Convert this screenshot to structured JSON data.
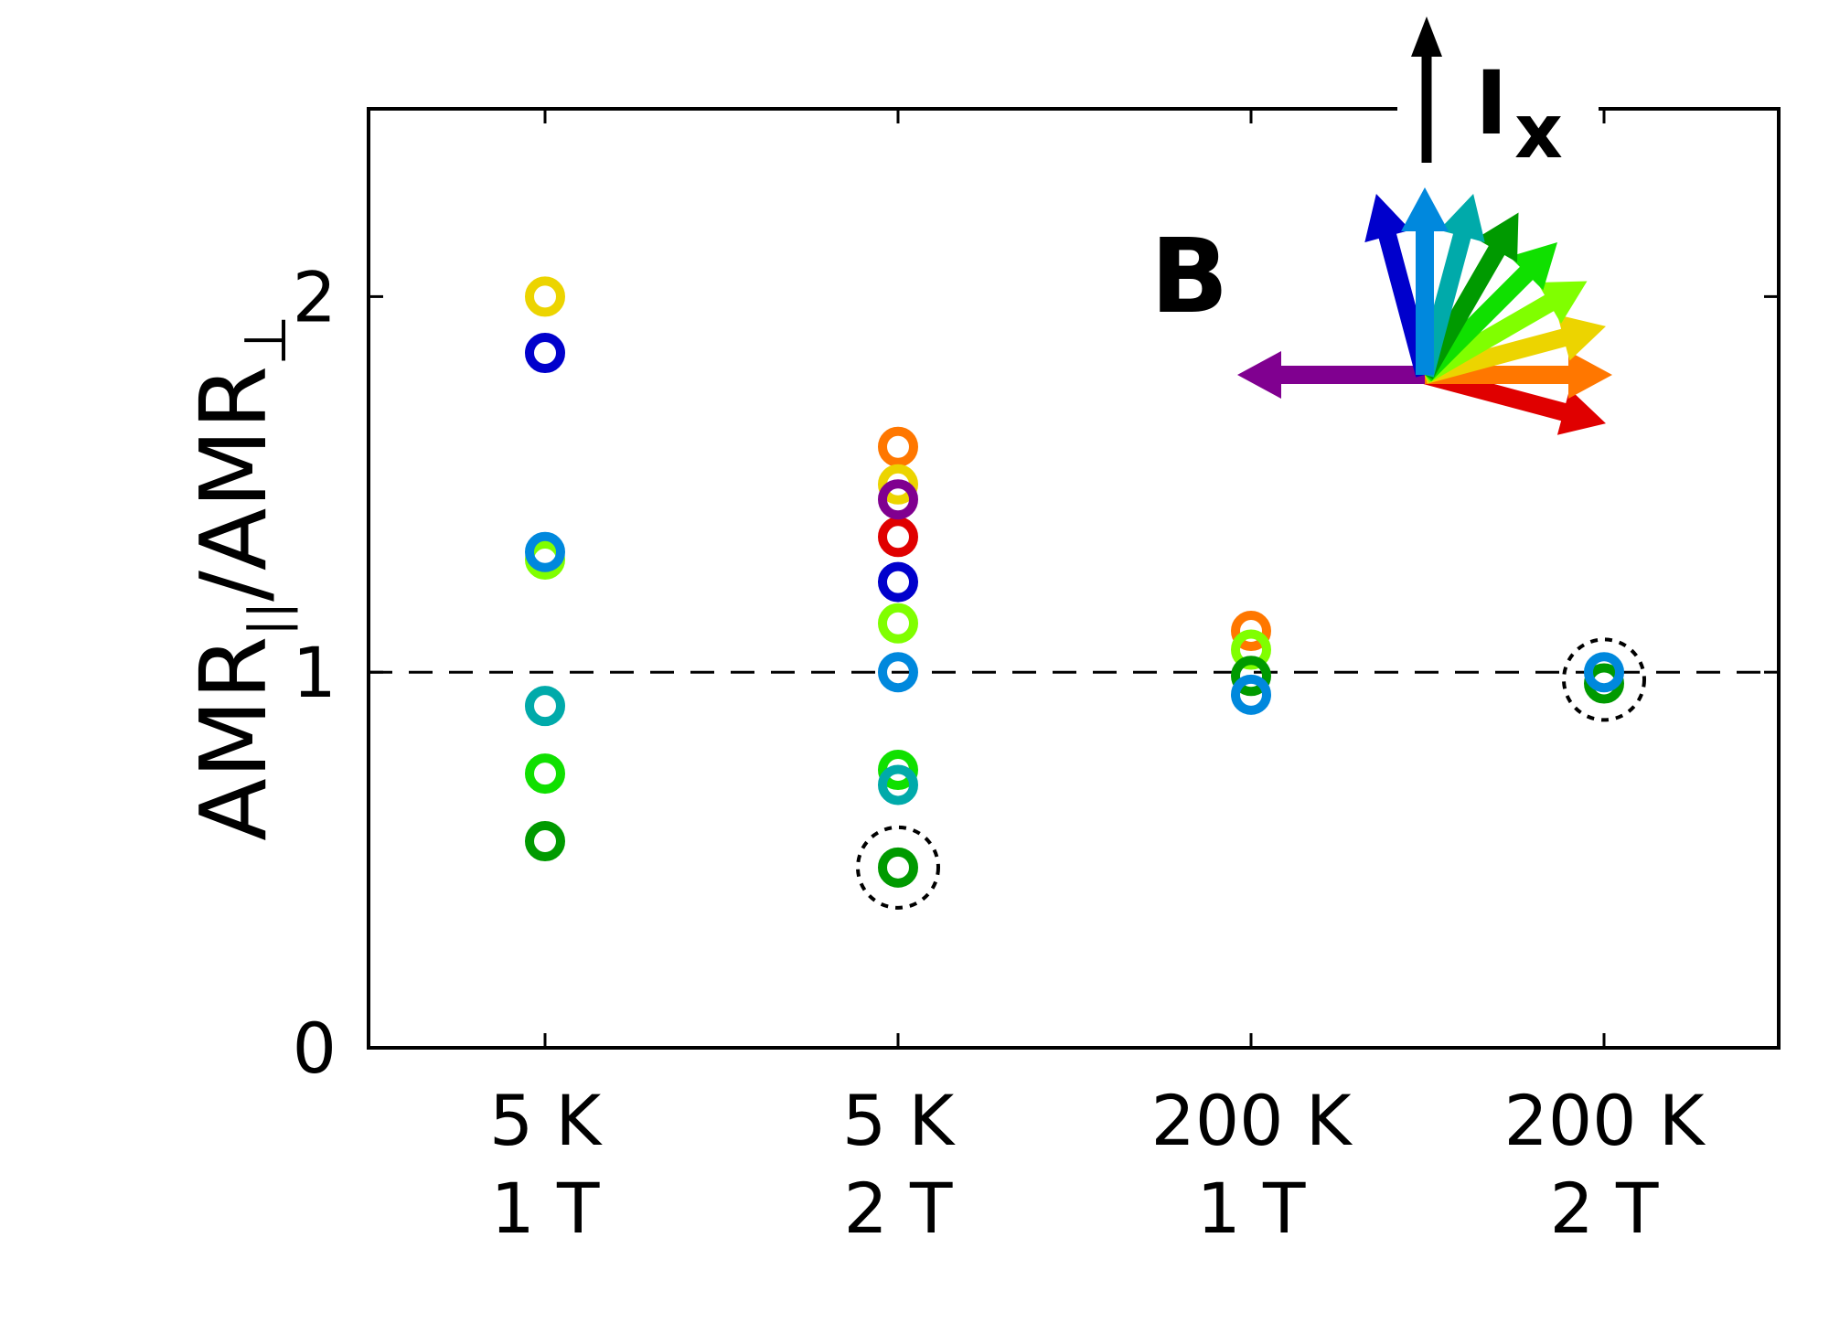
{
  "chart_data": {
    "type": "scatter",
    "title": "",
    "xlabel": "",
    "ylabel": {
      "base": "AMR",
      "sub_parallel": "||",
      "sep": "/",
      "sub_perp": "⊥"
    },
    "ylim": [
      0,
      2.5
    ],
    "yticks": [
      0,
      1,
      2
    ],
    "categories": [
      {
        "line1": "5 K",
        "line2": "1 T"
      },
      {
        "line1": "5 K",
        "line2": "2 T"
      },
      {
        "line1": "200 K",
        "line2": "1 T"
      },
      {
        "line1": "200 K",
        "line2": "2 T"
      }
    ],
    "reference_line": {
      "y": 1,
      "style": "dashed"
    },
    "inset": {
      "field_label": "B",
      "current_label": "I",
      "current_sub": "x"
    },
    "series": [
      {
        "angle_deg": -15,
        "color": "#e00000",
        "values": [
          null,
          1.36,
          null,
          null
        ]
      },
      {
        "angle_deg": 0,
        "color": "#ff7700",
        "values": [
          null,
          1.6,
          1.11,
          null
        ]
      },
      {
        "angle_deg": 15,
        "color": "#ecd400",
        "values": [
          2.0,
          1.5,
          null,
          null
        ]
      },
      {
        "angle_deg": 30,
        "color": "#80ff00",
        "values": [
          1.3,
          1.13,
          1.06,
          null
        ]
      },
      {
        "angle_deg": 45,
        "color": "#10e000",
        "values": [
          0.73,
          0.74,
          null,
          null
        ]
      },
      {
        "angle_deg": 60,
        "color": "#009a00",
        "values": [
          0.55,
          0.48,
          0.99,
          0.97
        ]
      },
      {
        "angle_deg": 75,
        "color": "#00aaaa",
        "values": [
          0.91,
          0.7,
          null,
          null
        ]
      },
      {
        "angle_deg": 90,
        "color": "#0088dd",
        "values": [
          1.32,
          1.0,
          0.94,
          1.0
        ]
      },
      {
        "angle_deg": 105,
        "color": "#0000cc",
        "values": [
          1.85,
          1.24,
          null,
          null
        ]
      },
      {
        "angle_deg": 180,
        "color": "#800090",
        "values": [
          null,
          1.46,
          null,
          null
        ]
      }
    ],
    "highlighted": [
      {
        "category": 1,
        "y": 0.48
      },
      {
        "category": 3,
        "y": 0.98
      }
    ],
    "grid": false,
    "legend": "none"
  }
}
